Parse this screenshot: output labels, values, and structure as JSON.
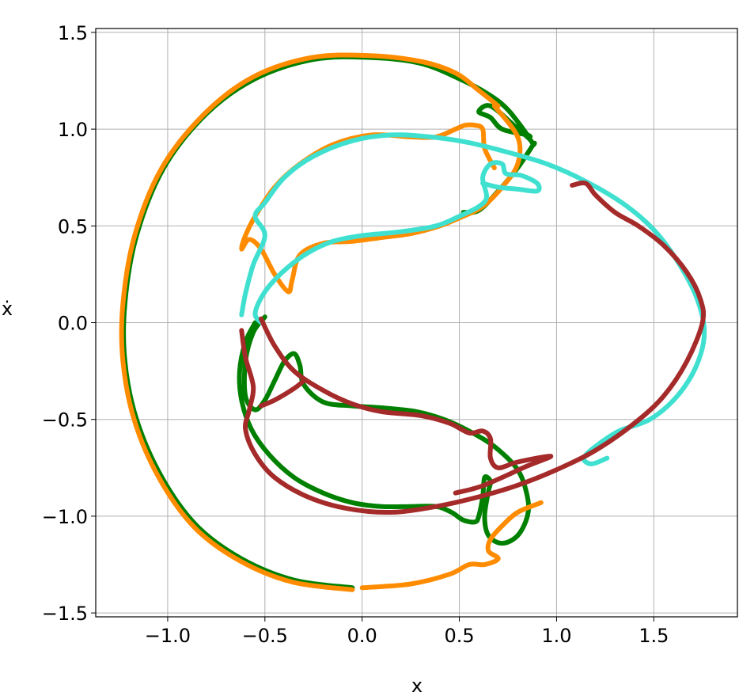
{
  "chart_data": {
    "type": "line",
    "title": "",
    "xlabel": "x",
    "ylabel": "ẋ",
    "xlim": [
      -1.37,
      1.93
    ],
    "ylim": [
      -1.52,
      1.52
    ],
    "xticks": [
      -1.0,
      -0.5,
      0.0,
      0.5,
      1.0,
      1.5
    ],
    "yticks": [
      -1.5,
      -1.0,
      -0.5,
      0.0,
      0.5,
      1.0,
      1.5
    ],
    "xtick_labels": [
      "−1.0",
      "−0.5",
      "0.0",
      "0.5",
      "1.0",
      "1.5"
    ],
    "ytick_labels": [
      "−1.5",
      "−1.0",
      "−0.5",
      "0.0",
      "0.5",
      "1.0",
      "1.5"
    ],
    "grid": true,
    "legend": "none",
    "series": [
      {
        "color": "#008000",
        "points": [
          [
            -0.05,
            -1.37
          ],
          [
            -0.35,
            -1.33
          ],
          [
            -0.62,
            -1.22
          ],
          [
            -0.85,
            -1.05
          ],
          [
            -1.03,
            -0.8
          ],
          [
            -1.16,
            -0.5
          ],
          [
            -1.22,
            -0.2
          ],
          [
            -1.22,
            0.1
          ],
          [
            -1.16,
            0.45
          ],
          [
            -1.02,
            0.8
          ],
          [
            -0.8,
            1.08
          ],
          [
            -0.55,
            1.26
          ],
          [
            -0.25,
            1.36
          ],
          [
            0.05,
            1.37
          ],
          [
            0.3,
            1.34
          ],
          [
            0.5,
            1.26
          ],
          [
            0.65,
            1.18
          ],
          [
            0.75,
            1.1
          ],
          [
            0.85,
            0.97
          ],
          [
            0.85,
            0.97
          ],
          [
            0.72,
            1.0
          ],
          [
            0.66,
            1.06
          ],
          [
            0.6,
            1.09
          ],
          [
            0.66,
            1.12
          ],
          [
            0.78,
            1.02
          ],
          [
            0.86,
            0.95
          ],
          [
            0.88,
            0.92
          ],
          [
            0.88,
            0.92
          ],
          [
            0.8,
            0.8
          ],
          [
            0.7,
            0.68
          ],
          [
            0.6,
            0.58
          ],
          [
            0.52,
            0.57
          ]
        ]
      },
      {
        "color": "#008000",
        "points": [
          [
            -0.5,
            0.03
          ],
          [
            -0.56,
            -0.05
          ],
          [
            -0.6,
            -0.2
          ],
          [
            -0.6,
            -0.38
          ],
          [
            -0.55,
            -0.45
          ],
          [
            -0.5,
            -0.4
          ],
          [
            -0.45,
            -0.3
          ],
          [
            -0.4,
            -0.2
          ],
          [
            -0.35,
            -0.16
          ],
          [
            -0.32,
            -0.22
          ],
          [
            -0.3,
            -0.32
          ],
          [
            -0.2,
            -0.41
          ],
          [
            -0.05,
            -0.43
          ],
          [
            0.1,
            -0.44
          ],
          [
            0.28,
            -0.46
          ],
          [
            0.42,
            -0.5
          ],
          [
            0.55,
            -0.56
          ],
          [
            0.68,
            -0.64
          ],
          [
            0.8,
            -0.76
          ],
          [
            0.85,
            -0.9
          ],
          [
            0.85,
            -1.0
          ],
          [
            0.8,
            -1.1
          ],
          [
            0.72,
            -1.14
          ],
          [
            0.65,
            -1.1
          ],
          [
            0.63,
            -1.0
          ],
          [
            0.65,
            -0.87
          ],
          [
            0.66,
            -0.82
          ],
          [
            0.63,
            -0.8
          ],
          [
            0.62,
            -0.9
          ],
          [
            0.6,
            -1.0
          ],
          [
            0.58,
            -1.03
          ],
          [
            0.52,
            -1.02
          ],
          [
            0.46,
            -0.98
          ],
          [
            0.38,
            -0.95
          ],
          [
            0.25,
            -0.95
          ],
          [
            0.1,
            -0.95
          ],
          [
            -0.05,
            -0.93
          ],
          [
            -0.2,
            -0.88
          ],
          [
            -0.35,
            -0.8
          ],
          [
            -0.48,
            -0.68
          ],
          [
            -0.57,
            -0.55
          ],
          [
            -0.62,
            -0.4
          ],
          [
            -0.63,
            -0.25
          ],
          [
            -0.6,
            -0.1
          ],
          [
            -0.55,
            0.0
          ]
        ]
      },
      {
        "color": "#ff8c00",
        "points": [
          [
            -0.05,
            -1.38
          ],
          [
            -0.36,
            -1.34
          ],
          [
            -0.63,
            -1.23
          ],
          [
            -0.86,
            -1.06
          ],
          [
            -1.04,
            -0.81
          ],
          [
            -1.17,
            -0.51
          ],
          [
            -1.23,
            -0.2
          ],
          [
            -1.23,
            0.1
          ],
          [
            -1.17,
            0.45
          ],
          [
            -1.03,
            0.8
          ],
          [
            -0.81,
            1.08
          ],
          [
            -0.56,
            1.27
          ],
          [
            -0.26,
            1.37
          ],
          [
            0.04,
            1.38
          ],
          [
            0.3,
            1.35
          ],
          [
            0.48,
            1.29
          ],
          [
            0.6,
            1.2
          ],
          [
            0.7,
            1.12
          ]
        ]
      },
      {
        "color": "#ff8c00",
        "points": [
          [
            0.0,
            -1.37
          ],
          [
            0.25,
            -1.35
          ],
          [
            0.45,
            -1.3
          ],
          [
            0.55,
            -1.25
          ],
          [
            0.63,
            -1.25
          ],
          [
            0.7,
            -1.22
          ],
          [
            0.65,
            -1.18
          ],
          [
            0.66,
            -1.12
          ],
          [
            0.72,
            -1.05
          ],
          [
            0.8,
            -0.98
          ],
          [
            0.92,
            -0.93
          ]
        ]
      },
      {
        "color": "#ff8c00",
        "points": [
          [
            0.68,
            1.12
          ],
          [
            0.8,
            0.96
          ],
          [
            0.8,
            0.82
          ],
          [
            0.72,
            0.7
          ],
          [
            0.62,
            0.6
          ],
          [
            0.52,
            0.55
          ],
          [
            0.4,
            0.5
          ],
          [
            0.25,
            0.46
          ],
          [
            0.1,
            0.44
          ],
          [
            -0.05,
            0.42
          ],
          [
            -0.2,
            0.41
          ],
          [
            -0.32,
            0.35
          ],
          [
            -0.36,
            0.22
          ],
          [
            -0.38,
            0.16
          ],
          [
            -0.45,
            0.25
          ],
          [
            -0.52,
            0.38
          ],
          [
            -0.58,
            0.43
          ],
          [
            -0.62,
            0.38
          ],
          [
            -0.6,
            0.45
          ],
          [
            -0.55,
            0.55
          ],
          [
            -0.45,
            0.7
          ],
          [
            -0.32,
            0.82
          ],
          [
            -0.15,
            0.92
          ],
          [
            0.05,
            0.97
          ],
          [
            0.25,
            0.96
          ],
          [
            0.38,
            0.96
          ],
          [
            0.48,
            1.0
          ],
          [
            0.53,
            1.02
          ],
          [
            0.58,
            1.02
          ],
          [
            0.62,
            1.0
          ],
          [
            0.63,
            0.9
          ],
          [
            0.68,
            0.8
          ]
        ]
      },
      {
        "color": "#40e0d0",
        "points": [
          [
            -0.62,
            0.04
          ],
          [
            -0.6,
            0.15
          ],
          [
            -0.56,
            0.3
          ],
          [
            -0.5,
            0.45
          ],
          [
            -0.55,
            0.55
          ],
          [
            -0.5,
            0.62
          ],
          [
            -0.4,
            0.75
          ],
          [
            -0.25,
            0.86
          ],
          [
            -0.05,
            0.94
          ],
          [
            0.15,
            0.97
          ],
          [
            0.35,
            0.96
          ],
          [
            0.55,
            0.93
          ],
          [
            0.75,
            0.88
          ],
          [
            0.95,
            0.82
          ],
          [
            1.15,
            0.73
          ],
          [
            1.35,
            0.61
          ],
          [
            1.5,
            0.48
          ],
          [
            1.62,
            0.32
          ],
          [
            1.72,
            0.13
          ],
          [
            1.76,
            -0.05
          ],
          [
            1.72,
            -0.22
          ],
          [
            1.62,
            -0.38
          ],
          [
            1.48,
            -0.5
          ],
          [
            1.32,
            -0.56
          ],
          [
            1.2,
            -0.64
          ],
          [
            1.14,
            -0.7
          ],
          [
            1.18,
            -0.73
          ],
          [
            1.26,
            -0.7
          ]
        ]
      },
      {
        "color": "#40e0d0",
        "points": [
          [
            0.62,
            0.72
          ],
          [
            0.7,
            0.7
          ],
          [
            0.8,
            0.69
          ],
          [
            0.9,
            0.68
          ],
          [
            0.9,
            0.72
          ],
          [
            0.82,
            0.76
          ],
          [
            0.74,
            0.77
          ],
          [
            0.72,
            0.82
          ],
          [
            0.66,
            0.82
          ],
          [
            0.62,
            0.75
          ],
          [
            0.64,
            0.65
          ],
          [
            0.6,
            0.6
          ],
          [
            0.5,
            0.55
          ],
          [
            0.38,
            0.5
          ],
          [
            0.2,
            0.47
          ],
          [
            0.0,
            0.45
          ],
          [
            -0.15,
            0.42
          ],
          [
            -0.28,
            0.36
          ],
          [
            -0.4,
            0.27
          ],
          [
            -0.5,
            0.16
          ],
          [
            -0.55,
            0.05
          ],
          [
            -0.52,
            0.0
          ]
        ]
      },
      {
        "color": "#a52a2a",
        "points": [
          [
            -0.62,
            -0.04
          ],
          [
            -0.6,
            -0.18
          ],
          [
            -0.56,
            -0.33
          ],
          [
            -0.58,
            -0.45
          ],
          [
            -0.6,
            -0.55
          ],
          [
            -0.55,
            -0.68
          ],
          [
            -0.45,
            -0.8
          ],
          [
            -0.28,
            -0.9
          ],
          [
            -0.08,
            -0.96
          ],
          [
            0.15,
            -0.98
          ],
          [
            0.38,
            -0.95
          ],
          [
            0.6,
            -0.9
          ],
          [
            0.8,
            -0.84
          ],
          [
            1.0,
            -0.76
          ],
          [
            1.2,
            -0.66
          ],
          [
            1.4,
            -0.52
          ],
          [
            1.55,
            -0.38
          ],
          [
            1.67,
            -0.2
          ],
          [
            1.75,
            0.0
          ],
          [
            1.74,
            0.12
          ],
          [
            1.67,
            0.26
          ],
          [
            1.55,
            0.4
          ],
          [
            1.42,
            0.5
          ],
          [
            1.3,
            0.57
          ],
          [
            1.2,
            0.66
          ],
          [
            1.15,
            0.72
          ],
          [
            1.08,
            0.71
          ]
        ]
      },
      {
        "color": "#a52a2a",
        "points": [
          [
            -0.52,
            0.02
          ],
          [
            -0.45,
            -0.12
          ],
          [
            -0.35,
            -0.25
          ],
          [
            -0.2,
            -0.35
          ],
          [
            -0.05,
            -0.42
          ],
          [
            0.1,
            -0.46
          ],
          [
            0.3,
            -0.48
          ],
          [
            0.45,
            -0.52
          ],
          [
            0.55,
            -0.57
          ],
          [
            0.62,
            -0.56
          ],
          [
            0.66,
            -0.6
          ],
          [
            0.66,
            -0.7
          ],
          [
            0.7,
            -0.75
          ],
          [
            0.8,
            -0.72
          ],
          [
            0.97,
            -0.69
          ],
          [
            0.85,
            -0.74
          ],
          [
            0.72,
            -0.8
          ],
          [
            0.6,
            -0.85
          ],
          [
            0.48,
            -0.88
          ]
        ]
      },
      {
        "color": "#a52a2a",
        "points": [
          [
            -0.52,
            -0.43
          ],
          [
            -0.45,
            -0.4
          ],
          [
            -0.35,
            -0.34
          ],
          [
            -0.3,
            -0.3
          ]
        ]
      }
    ]
  }
}
